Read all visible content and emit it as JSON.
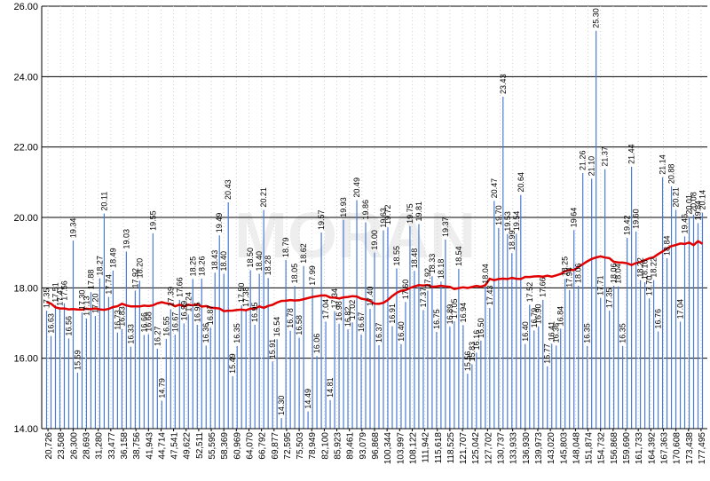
{
  "chart_data": {
    "type": "bar",
    "title": "",
    "xlabel": "",
    "ylabel": "",
    "ylim": [
      14,
      26
    ],
    "yticks": [
      "14.00",
      "16.00",
      "18.00",
      "20.00",
      "22.00",
      "24.00",
      "26.00"
    ],
    "grid": true,
    "legend": "none",
    "x_tick_labels": [
      "20,726",
      "23,508",
      "26,300",
      "28,693",
      "31,280",
      "33,477",
      "36,158",
      "38,756",
      "41,943",
      "44,714",
      "47,541",
      "49,622",
      "52,511",
      "55,595",
      "58,369",
      "60,969",
      "64,070",
      "66,792",
      "69,877",
      "72,595",
      "75,503",
      "78,949",
      "82,100",
      "85,923",
      "89,461",
      "93,079",
      "96,868",
      "100,344",
      "103,997",
      "108,122",
      "111,942",
      "115,618",
      "118,525",
      "121,707",
      "125,042",
      "127,702",
      "130,737",
      "133,933",
      "136,930",
      "139,973",
      "143,020",
      "145,803",
      "148,048",
      "151,874",
      "154,732",
      "156,868",
      "159,690",
      "161,733",
      "164,392",
      "167,363",
      "170,608",
      "173,438",
      "177,495"
    ],
    "values": [
      17.35,
      16.63,
      17.51,
      17.41,
      17.56,
      16.56,
      19.34,
      15.59,
      17.3,
      17.13,
      17.88,
      17.2,
      18.27,
      20.11,
      17.74,
      18.49,
      16.73,
      16.83,
      19.03,
      16.33,
      17.92,
      18.2,
      16.66,
      16.68,
      19.55,
      16.27,
      14.79,
      16.55,
      17.39,
      16.67,
      17.66,
      16.99,
      17.24,
      18.25,
      16.95,
      18.26,
      16.36,
      16.87,
      18.43,
      19.49,
      18.4,
      20.43,
      15.49,
      16.35,
      17.5,
      17.38,
      18.5,
      16.95,
      18.4,
      20.21,
      18.28,
      15.91,
      16.54,
      14.3,
      18.79,
      16.78,
      18.05,
      16.58,
      18.62,
      14.49,
      17.99,
      16.06,
      19.57,
      17.04,
      14.81,
      17.34,
      16.98,
      19.93,
      16.82,
      17.02,
      20.49,
      16.67,
      19.86,
      17.4,
      19.0,
      16.37,
      19.63,
      19.72,
      16.91,
      18.55,
      16.4,
      17.6,
      19.75,
      18.48,
      19.81,
      17.37,
      17.92,
      18.33,
      16.75,
      18.18,
      19.37,
      16.89,
      17.05,
      18.54,
      16.94,
      15.56,
      15.83,
      16.16,
      16.5,
      18.04,
      17.43,
      20.47,
      19.7,
      23.43,
      19.53,
      18.99,
      19.54,
      20.64,
      16.4,
      17.52,
      16.79,
      16.9,
      17.66,
      15.77,
      16.41,
      16.36,
      16.84,
      18.25,
      17.94,
      19.64,
      18.06,
      21.26,
      16.35,
      21.1,
      25.3,
      17.71,
      21.37,
      17.35,
      18.06,
      18.04,
      16.35,
      19.42,
      21.44,
      19.6,
      18.22,
      18.16,
      17.7,
      18.22,
      16.76,
      21.14,
      18.84,
      20.88,
      20.21,
      17.04,
      19.46,
      20.01,
      20.08,
      19.84,
      20.14
    ]
  },
  "watermark": "MORAN"
}
